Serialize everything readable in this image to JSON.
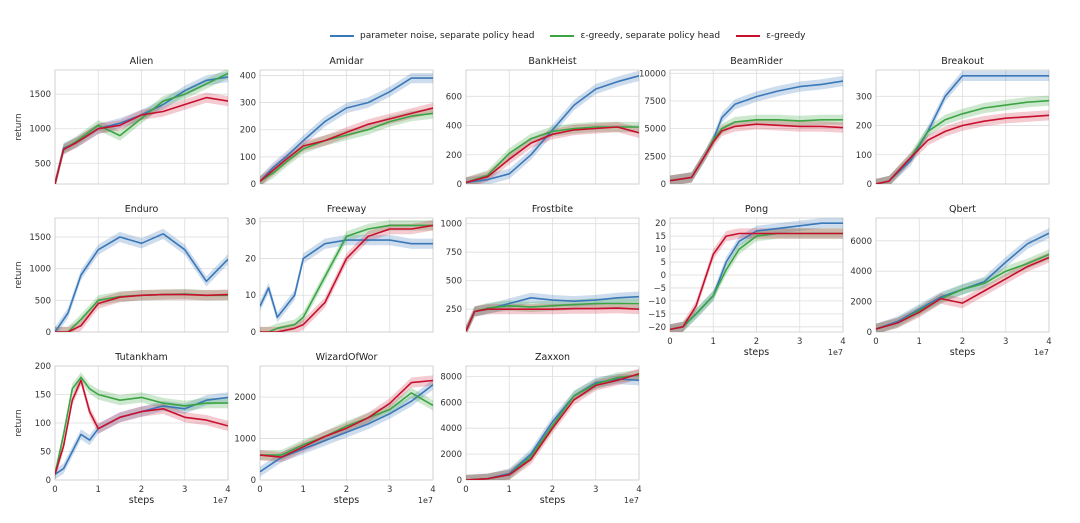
{
  "legend": {
    "items": [
      {
        "label": "parameter noise, separate policy head",
        "color": "#3a78b9"
      },
      {
        "label": "ε-greedy, separate policy head",
        "color": "#3aa542"
      },
      {
        "label": "ε-greedy",
        "color": "#c8102e"
      }
    ]
  },
  "chart_data": [
    {
      "type": "line",
      "title": "Alien",
      "ylabel": "return",
      "xlabel": "",
      "x_exponent": "",
      "xlim": [
        0,
        4
      ],
      "ylim": [
        200,
        1850
      ],
      "yticks": [
        500,
        1000,
        1500
      ],
      "xticks": [
        0,
        1,
        2,
        3,
        4
      ],
      "xticklabels": [
        "",
        "",
        "",
        "",
        ""
      ],
      "x": [
        0,
        0.2,
        0.5,
        1,
        1.5,
        2,
        2.5,
        3,
        3.5,
        4
      ],
      "series": [
        {
          "name": "parameter noise, separate policy head",
          "values": [
            200,
            720,
            800,
            1000,
            1080,
            1200,
            1350,
            1550,
            1700,
            1750
          ]
        },
        {
          "name": "ε-greedy, separate policy head",
          "values": [
            200,
            700,
            820,
            1050,
            900,
            1150,
            1400,
            1500,
            1650,
            1800
          ]
        },
        {
          "name": "ε-greedy",
          "values": [
            200,
            700,
            800,
            1000,
            1050,
            1200,
            1250,
            1350,
            1450,
            1400
          ]
        }
      ]
    },
    {
      "type": "line",
      "title": "Amidar",
      "ylabel": "",
      "xlabel": "",
      "x_exponent": "",
      "xlim": [
        0,
        4
      ],
      "ylim": [
        0,
        420
      ],
      "yticks": [
        0,
        100,
        200,
        300,
        400
      ],
      "xticks": [
        0,
        1,
        2,
        3,
        4
      ],
      "xticklabels": [
        "",
        "",
        "",
        "",
        ""
      ],
      "x": [
        0,
        0.3,
        0.6,
        1,
        1.5,
        2,
        2.5,
        3,
        3.5,
        4
      ],
      "series": [
        {
          "name": "parameter noise, separate policy head",
          "values": [
            10,
            60,
            100,
            160,
            230,
            280,
            300,
            340,
            390,
            390
          ]
        },
        {
          "name": "ε-greedy, separate policy head",
          "values": [
            10,
            40,
            80,
            130,
            160,
            180,
            200,
            230,
            250,
            260
          ]
        },
        {
          "name": "ε-greedy",
          "values": [
            10,
            50,
            90,
            140,
            160,
            190,
            220,
            240,
            260,
            280
          ]
        }
      ]
    },
    {
      "type": "line",
      "title": "BankHeist",
      "ylabel": "",
      "xlabel": "",
      "x_exponent": "",
      "xlim": [
        0,
        4
      ],
      "ylim": [
        0,
        780
      ],
      "yticks": [
        0,
        200,
        400,
        600
      ],
      "xticks": [
        0,
        1,
        2,
        3,
        4
      ],
      "xticklabels": [
        "",
        "",
        "",
        "",
        ""
      ],
      "x": [
        0,
        0.5,
        1,
        1.5,
        2,
        2.5,
        3,
        3.5,
        4
      ],
      "series": [
        {
          "name": "parameter noise, separate policy head",
          "values": [
            10,
            30,
            70,
            200,
            370,
            540,
            650,
            700,
            740
          ]
        },
        {
          "name": "ε-greedy, separate policy head",
          "values": [
            10,
            60,
            210,
            310,
            360,
            380,
            390,
            390,
            390
          ]
        },
        {
          "name": "ε-greedy",
          "values": [
            10,
            50,
            170,
            280,
            340,
            370,
            380,
            390,
            350
          ]
        }
      ]
    },
    {
      "type": "line",
      "title": "BeamRider",
      "ylabel": "",
      "xlabel": "",
      "x_exponent": "",
      "xlim": [
        0,
        4
      ],
      "ylim": [
        0,
        10300
      ],
      "yticks": [
        0,
        2500,
        5000,
        7500,
        10000
      ],
      "xticks": [
        0,
        1,
        2,
        3,
        4
      ],
      "xticklabels": [
        "",
        "",
        "",
        "",
        ""
      ],
      "x": [
        0,
        0.5,
        0.8,
        1,
        1.2,
        1.5,
        2,
        2.5,
        3,
        3.5,
        4
      ],
      "series": [
        {
          "name": "parameter noise, separate policy head",
          "values": [
            300,
            600,
            2500,
            4000,
            6000,
            7200,
            7900,
            8400,
            8800,
            9000,
            9300
          ]
        },
        {
          "name": "ε-greedy, separate policy head",
          "values": [
            300,
            600,
            2500,
            4000,
            5000,
            5600,
            5800,
            5800,
            5700,
            5800,
            5800
          ]
        },
        {
          "name": "ε-greedy",
          "values": [
            300,
            600,
            2500,
            3800,
            4800,
            5200,
            5400,
            5300,
            5200,
            5200,
            5100
          ]
        }
      ]
    },
    {
      "type": "line",
      "title": "Breakout",
      "ylabel": "",
      "xlabel": "",
      "x_exponent": "",
      "xlim": [
        0,
        4
      ],
      "ylim": [
        0,
        390
      ],
      "yticks": [
        0,
        100,
        200,
        300
      ],
      "xticks": [
        0,
        1,
        2,
        3,
        4
      ],
      "xticklabels": [
        "",
        "",
        "",
        "",
        ""
      ],
      "x": [
        0,
        0.3,
        0.8,
        1.2,
        1.6,
        2,
        2.5,
        3,
        3.5,
        4
      ],
      "series": [
        {
          "name": "parameter noise, separate policy head",
          "values": [
            0,
            10,
            80,
            180,
            300,
            370,
            370,
            370,
            370,
            370
          ]
        },
        {
          "name": "ε-greedy, separate policy head",
          "values": [
            0,
            10,
            90,
            180,
            220,
            240,
            260,
            270,
            280,
            285
          ]
        },
        {
          "name": "ε-greedy",
          "values": [
            0,
            10,
            90,
            150,
            180,
            200,
            215,
            225,
            230,
            235
          ]
        }
      ]
    },
    {
      "type": "line",
      "title": "Enduro",
      "ylabel": "return",
      "xlabel": "",
      "x_exponent": "",
      "xlim": [
        0,
        4
      ],
      "ylim": [
        0,
        1800
      ],
      "yticks": [
        0,
        500,
        1000,
        1500
      ],
      "xticks": [
        0,
        1,
        2,
        3,
        4
      ],
      "xticklabels": [
        "",
        "",
        "",
        "",
        ""
      ],
      "x": [
        0,
        0.3,
        0.6,
        1,
        1.5,
        2,
        2.5,
        3,
        3.5,
        4
      ],
      "series": [
        {
          "name": "parameter noise, separate policy head",
          "values": [
            0,
            300,
            900,
            1300,
            1500,
            1400,
            1550,
            1300,
            800,
            1150
          ]
        },
        {
          "name": "ε-greedy, separate policy head",
          "values": [
            0,
            0,
            200,
            500,
            560,
            580,
            590,
            600,
            580,
            580
          ]
        },
        {
          "name": "ε-greedy",
          "values": [
            0,
            0,
            100,
            450,
            550,
            580,
            590,
            590,
            580,
            590
          ]
        }
      ]
    },
    {
      "type": "line",
      "title": "Freeway",
      "ylabel": "",
      "xlabel": "",
      "x_exponent": "",
      "xlim": [
        0,
        4
      ],
      "ylim": [
        0,
        31
      ],
      "yticks": [
        0,
        10,
        20,
        30
      ],
      "xticks": [
        0,
        1,
        2,
        3,
        4
      ],
      "xticklabels": [
        "",
        "",
        "",
        "",
        ""
      ],
      "x": [
        0,
        0.2,
        0.4,
        0.8,
        1,
        1.5,
        2,
        2.5,
        3,
        3.5,
        4
      ],
      "series": [
        {
          "name": "parameter noise, separate policy head",
          "values": [
            7,
            12,
            4,
            10,
            20,
            24,
            25,
            25,
            25,
            24,
            24
          ]
        },
        {
          "name": "ε-greedy, separate policy head",
          "values": [
            0,
            0,
            1,
            2,
            4,
            15,
            26,
            28,
            29,
            29,
            29
          ]
        },
        {
          "name": "ε-greedy",
          "values": [
            0,
            0,
            0,
            1,
            2,
            8,
            20,
            26,
            28,
            28,
            29
          ]
        }
      ]
    },
    {
      "type": "line",
      "title": "Frostbite",
      "ylabel": "",
      "xlabel": "",
      "x_exponent": "",
      "xlim": [
        0,
        4
      ],
      "ylim": [
        50,
        1050
      ],
      "yticks": [
        250,
        500,
        750,
        1000
      ],
      "xticks": [
        0,
        1,
        2,
        3,
        4
      ],
      "xticklabels": [
        "",
        "",
        "",
        "",
        ""
      ],
      "x": [
        0,
        0.2,
        0.5,
        1,
        1.5,
        2,
        2.5,
        3,
        3.5,
        4
      ],
      "series": [
        {
          "name": "parameter noise, separate policy head",
          "values": [
            60,
            230,
            250,
            300,
            350,
            330,
            320,
            330,
            350,
            360
          ]
        },
        {
          "name": "ε-greedy, separate policy head",
          "values": [
            60,
            230,
            260,
            280,
            270,
            280,
            290,
            300,
            300,
            300
          ]
        },
        {
          "name": "ε-greedy",
          "values": [
            60,
            230,
            250,
            250,
            250,
            250,
            255,
            255,
            260,
            250
          ]
        }
      ]
    },
    {
      "type": "line",
      "title": "Pong",
      "ylabel": "",
      "xlabel": "steps",
      "x_exponent": "1e7",
      "xlim": [
        0,
        4
      ],
      "ylim": [
        -22,
        22
      ],
      "yticks": [
        -20,
        -15,
        -10,
        -5,
        0,
        5,
        10,
        15,
        20
      ],
      "xticks": [
        0,
        1,
        2,
        3,
        4
      ],
      "xticklabels": [
        "0",
        "1",
        "2",
        "3",
        "4"
      ],
      "x": [
        0,
        0.3,
        0.6,
        1,
        1.3,
        1.6,
        2,
        2.5,
        3,
        3.5,
        4
      ],
      "series": [
        {
          "name": "parameter noise, separate policy head",
          "values": [
            -21,
            -20,
            -15,
            -8,
            5,
            13,
            17,
            18,
            19,
            20,
            20
          ]
        },
        {
          "name": "ε-greedy, separate policy head",
          "values": [
            -21,
            -20,
            -15,
            -8,
            2,
            10,
            15,
            16,
            16,
            16,
            16
          ]
        },
        {
          "name": "ε-greedy",
          "values": [
            -21,
            -20,
            -12,
            8,
            15,
            16,
            16,
            16,
            16,
            16,
            16
          ]
        }
      ]
    },
    {
      "type": "line",
      "title": "Qbert",
      "ylabel": "",
      "xlabel": "steps",
      "x_exponent": "1e7",
      "xlim": [
        0,
        4
      ],
      "ylim": [
        0,
        7500
      ],
      "yticks": [
        0,
        2000,
        4000,
        6000
      ],
      "xticks": [
        0,
        1,
        2,
        3,
        4
      ],
      "xticklabels": [
        "0",
        "1",
        "2",
        "3",
        "4"
      ],
      "x": [
        0,
        0.5,
        1,
        1.5,
        2,
        2.5,
        3,
        3.5,
        4
      ],
      "series": [
        {
          "name": "parameter noise, separate policy head",
          "values": [
            200,
            700,
            1500,
            2300,
            2800,
            3300,
            4600,
            5800,
            6500
          ]
        },
        {
          "name": "ε-greedy, separate policy head",
          "values": [
            200,
            600,
            1400,
            2200,
            2800,
            3200,
            4000,
            4500,
            5100
          ]
        },
        {
          "name": "ε-greedy",
          "values": [
            200,
            600,
            1300,
            2200,
            1900,
            2700,
            3500,
            4300,
            4900
          ]
        }
      ]
    },
    {
      "type": "line",
      "title": "Tutankham",
      "ylabel": "return",
      "xlabel": "steps",
      "x_exponent": "1e7",
      "xlim": [
        0,
        4
      ],
      "ylim": [
        0,
        200
      ],
      "yticks": [
        0,
        50,
        100,
        150,
        200
      ],
      "xticks": [
        0,
        1,
        2,
        3,
        4
      ],
      "xticklabels": [
        "0",
        "1",
        "2",
        "3",
        "4"
      ],
      "x": [
        0,
        0.2,
        0.4,
        0.6,
        0.8,
        1,
        1.5,
        2,
        2.5,
        3,
        3.5,
        4
      ],
      "series": [
        {
          "name": "parameter noise, separate policy head",
          "values": [
            10,
            20,
            50,
            80,
            70,
            90,
            110,
            120,
            130,
            125,
            140,
            145
          ]
        },
        {
          "name": "ε-greedy, separate policy head",
          "values": [
            10,
            80,
            160,
            180,
            160,
            150,
            140,
            145,
            135,
            130,
            135,
            135
          ]
        },
        {
          "name": "ε-greedy",
          "values": [
            10,
            60,
            140,
            175,
            120,
            90,
            110,
            120,
            125,
            110,
            105,
            95
          ]
        }
      ]
    },
    {
      "type": "line",
      "title": "WizardOfWor",
      "ylabel": "",
      "xlabel": "steps",
      "x_exponent": "1e7",
      "xlim": [
        0,
        4
      ],
      "ylim": [
        0,
        2750
      ],
      "yticks": [
        0,
        1000,
        2000
      ],
      "xticks": [
        0,
        1,
        2,
        3,
        4
      ],
      "xticklabels": [
        "0",
        "1",
        "2",
        "3",
        "4"
      ],
      "x": [
        0,
        0.5,
        1,
        1.5,
        2,
        2.5,
        3,
        3.5,
        4
      ],
      "series": [
        {
          "name": "parameter noise, separate policy head",
          "values": [
            200,
            550,
            750,
            950,
            1150,
            1350,
            1600,
            1900,
            2300
          ]
        },
        {
          "name": "ε-greedy, separate policy head",
          "values": [
            600,
            600,
            850,
            1050,
            1300,
            1500,
            1700,
            2100,
            1800
          ]
        },
        {
          "name": "ε-greedy",
          "values": [
            600,
            550,
            800,
            1050,
            1250,
            1500,
            1850,
            2350,
            2400
          ]
        }
      ]
    },
    {
      "type": "line",
      "title": "Zaxxon",
      "ylabel": "",
      "xlabel": "steps",
      "x_exponent": "1e7",
      "xlim": [
        0,
        4
      ],
      "ylim": [
        0,
        8800
      ],
      "yticks": [
        0,
        2000,
        4000,
        6000,
        8000
      ],
      "xticks": [
        0,
        1,
        2,
        3,
        4
      ],
      "xticklabels": [
        "0",
        "1",
        "2",
        "3",
        "4"
      ],
      "x": [
        0,
        0.5,
        1,
        1.5,
        2,
        2.5,
        3,
        3.5,
        4
      ],
      "series": [
        {
          "name": "parameter noise, separate policy head",
          "values": [
            0,
            100,
            500,
            2000,
            4500,
            6500,
            7500,
            7800,
            7700
          ]
        },
        {
          "name": "ε-greedy, separate policy head",
          "values": [
            0,
            100,
            400,
            1800,
            4200,
            6500,
            7400,
            7900,
            8100
          ]
        },
        {
          "name": "ε-greedy",
          "values": [
            0,
            100,
            400,
            1600,
            4000,
            6200,
            7300,
            7700,
            8200
          ]
        }
      ]
    }
  ]
}
